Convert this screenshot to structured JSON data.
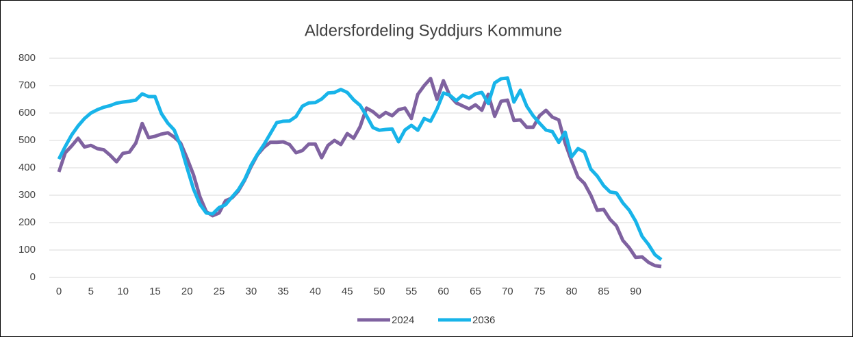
{
  "chart_data": {
    "type": "line",
    "title": "Aldersfordeling  Syddjurs Kommune",
    "x": [
      0,
      1,
      2,
      3,
      4,
      5,
      6,
      7,
      8,
      9,
      10,
      11,
      12,
      13,
      14,
      15,
      16,
      17,
      18,
      19,
      20,
      21,
      22,
      23,
      24,
      25,
      26,
      27,
      28,
      29,
      30,
      31,
      32,
      33,
      34,
      35,
      36,
      37,
      38,
      39,
      40,
      41,
      42,
      43,
      44,
      45,
      46,
      47,
      48,
      49,
      50,
      51,
      52,
      53,
      54,
      55,
      56,
      57,
      58,
      59,
      60,
      61,
      62,
      63,
      64,
      65,
      66,
      67,
      68,
      69,
      70,
      71,
      72,
      73,
      74,
      75,
      76,
      77,
      78,
      79,
      80,
      81,
      82,
      83,
      84,
      85,
      86,
      87,
      88,
      89,
      90,
      91,
      92,
      93,
      94
    ],
    "series": [
      {
        "name": "2024",
        "color": "#7f62a0",
        "values": [
          385,
          455,
          480,
          508,
          476,
          482,
          470,
          466,
          446,
          422,
          453,
          457,
          490,
          562,
          510,
          515,
          523,
          528,
          512,
          490,
          435,
          375,
          295,
          240,
          225,
          235,
          280,
          290,
          315,
          355,
          405,
          448,
          475,
          493,
          493,
          495,
          485,
          455,
          463,
          487,
          487,
          437,
          482,
          500,
          485,
          525,
          508,
          550,
          618,
          605,
          585,
          602,
          590,
          612,
          618,
          580,
          668,
          700,
          726,
          650,
          718,
          663,
          637,
          626,
          615,
          630,
          610,
          668,
          588,
          643,
          647,
          573,
          575,
          548,
          548,
          590,
          610,
          585,
          575,
          490,
          425,
          366,
          343,
          300,
          245,
          248,
          212,
          188,
          135,
          108,
          73,
          75,
          55,
          43,
          40
        ]
      },
      {
        "name": "2036",
        "color": "#18b4e9",
        "values": [
          432,
          478,
          520,
          553,
          580,
          600,
          612,
          621,
          627,
          636,
          640,
          643,
          647,
          670,
          660,
          660,
          598,
          563,
          538,
          480,
          400,
          323,
          267,
          235,
          232,
          255,
          265,
          293,
          320,
          358,
          410,
          450,
          485,
          525,
          565,
          570,
          571,
          587,
          625,
          637,
          638,
          651,
          673,
          675,
          686,
          675,
          648,
          628,
          590,
          547,
          537,
          540,
          542,
          495,
          538,
          555,
          537,
          580,
          570,
          615,
          673,
          665,
          645,
          665,
          655,
          670,
          675,
          635,
          710,
          725,
          728,
          640,
          683,
          625,
          590,
          563,
          538,
          532,
          493,
          530,
          440,
          470,
          458,
          395,
          370,
          335,
          312,
          308,
          272,
          245,
          205,
          150,
          120,
          83,
          65
        ]
      }
    ],
    "xlim": [
      0,
      94
    ],
    "xticks": [
      0,
      5,
      10,
      15,
      20,
      25,
      30,
      35,
      40,
      45,
      50,
      55,
      60,
      65,
      70,
      75,
      80,
      85,
      90
    ],
    "ylim": [
      0,
      800
    ],
    "yticks": [
      0,
      100,
      200,
      300,
      400,
      500,
      600,
      700,
      800
    ],
    "grid": true
  }
}
